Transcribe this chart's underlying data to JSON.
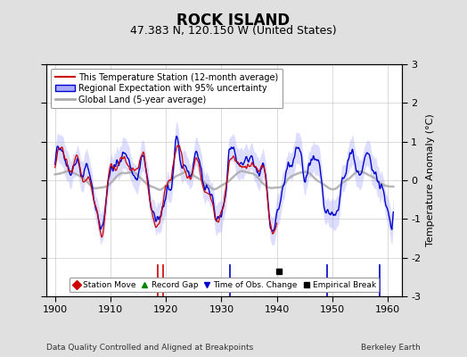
{
  "title": "ROCK ISLAND",
  "subtitle": "47.383 N, 120.150 W (United States)",
  "xlabel_years": [
    1900,
    1910,
    1920,
    1930,
    1940,
    1950,
    1960
  ],
  "xlim": [
    1898.5,
    1962.5
  ],
  "ylim": [
    -3,
    3
  ],
  "yticks": [
    -3,
    -2,
    -1,
    0,
    1,
    2,
    3
  ],
  "ylabel": "Temperature Anomaly (°C)",
  "background_color": "#e0e0e0",
  "plot_bg_color": "#ffffff",
  "title_fontsize": 12,
  "subtitle_fontsize": 9,
  "footer_left": "Data Quality Controlled and Aligned at Breakpoints",
  "footer_right": "Berkeley Earth",
  "legend_entries": [
    "This Temperature Station (12-month average)",
    "Regional Expectation with 95% uncertainty",
    "Global Land (5-year average)"
  ],
  "marker_legend": [
    {
      "label": "Station Move",
      "color": "#cc0000",
      "marker": "D"
    },
    {
      "label": "Record Gap",
      "color": "#008800",
      "marker": "^"
    },
    {
      "label": "Time of Obs. Change",
      "color": "#0000cc",
      "marker": "v"
    },
    {
      "label": "Empirical Break",
      "color": "#000000",
      "marker": "s"
    }
  ],
  "empirical_break_year": 1940.3,
  "empirical_break_y": -2.35,
  "station_vline_years": [
    1918.5,
    1919.5
  ],
  "tobs_vline_years": [
    1931.5,
    1949.0,
    1958.5
  ],
  "vline_ymin_norm": 0.82,
  "vline_ymax_norm": 1.0,
  "station_line_color": "#cc0000",
  "regional_line_color": "#0000cc",
  "regional_fill_color": "#aaaaff",
  "global_line_color": "#aaaaaa",
  "seed": 12345,
  "n_months": 732,
  "year_start": 1900,
  "year_end": 1961
}
